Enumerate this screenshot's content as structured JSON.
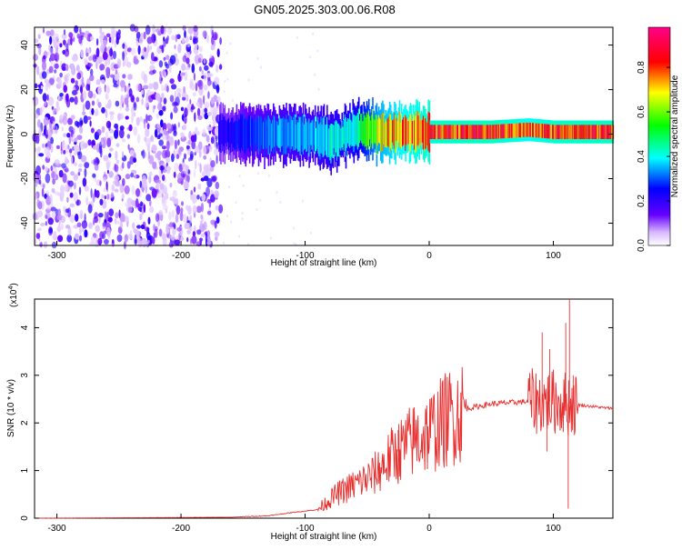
{
  "title": "GN05.2025.303.00.06.R08",
  "top_panel": {
    "xlabel": "Height of straight line (km)",
    "ylabel": "Frequency (Hz)",
    "colorbar_label": "Normalized spectral amplitude"
  },
  "bottom_panel": {
    "xlabel": "Height of straight line (km)",
    "ylabel": "SNR (10 * v/v)",
    "multiplier": "(x10",
    "multiplier_exp": "4",
    "multiplier_close": ")"
  },
  "chart_data": [
    {
      "type": "heatmap",
      "title": "GN05.2025.303.00.06.R08",
      "xlabel": "Height of straight line (km)",
      "ylabel": "Frequency (Hz)",
      "xlim": [
        -318,
        148
      ],
      "ylim": [
        -50,
        48
      ],
      "xticks": [
        -300,
        -200,
        -100,
        0,
        100
      ],
      "yticks": [
        -40,
        -20,
        0,
        20,
        40
      ],
      "colorbar": {
        "label": "Normalized spectral amplitude",
        "range": [
          0,
          0.98
        ],
        "ticks": [
          0.0,
          0.2,
          0.4,
          0.6,
          0.8
        ],
        "colormap": [
          "#ffffff",
          "#6600ff",
          "#0000ff",
          "#00ffff",
          "#00ff00",
          "#ffff00",
          "#ff0000",
          "#ff0088"
        ]
      },
      "noise_region_x": [
        -318,
        -168
      ],
      "ridge": [
        {
          "x": -170,
          "f": 0,
          "amp": 0.25
        },
        {
          "x": -150,
          "f": 0,
          "amp": 0.3
        },
        {
          "x": -120,
          "f": 0,
          "amp": 0.4
        },
        {
          "x": -100,
          "f": 0,
          "amp": 0.4
        },
        {
          "x": -80,
          "f": -3,
          "amp": 0.45
        },
        {
          "x": -60,
          "f": 2,
          "amp": 0.5
        },
        {
          "x": -40,
          "f": 1,
          "amp": 0.8
        },
        {
          "x": -20,
          "f": 1,
          "amp": 0.9
        },
        {
          "x": 0,
          "f": 1,
          "amp": 0.95
        },
        {
          "x": 50,
          "f": 1,
          "amp": 0.97
        },
        {
          "x": 80,
          "f": 2,
          "amp": 0.9
        },
        {
          "x": 100,
          "f": 1,
          "amp": 0.95
        },
        {
          "x": 148,
          "f": 1,
          "amp": 0.97
        }
      ]
    },
    {
      "type": "line",
      "xlabel": "Height of straight line (km)",
      "ylabel": "SNR (10 * v/v)",
      "xlim": [
        -318,
        148
      ],
      "ylim": [
        0,
        4.6
      ],
      "xticks": [
        -300,
        -200,
        -100,
        0,
        100
      ],
      "yticks": [
        0,
        1,
        2,
        3,
        4
      ],
      "y_multiplier": "x10^4",
      "color": "#e83030",
      "envelope": [
        {
          "x": -318,
          "y": 0.0
        },
        {
          "x": -160,
          "y": 0.02
        },
        {
          "x": -130,
          "y": 0.05
        },
        {
          "x": -110,
          "y": 0.12
        },
        {
          "x": -90,
          "y": 0.18
        },
        {
          "x": -75,
          "y": 0.5
        },
        {
          "x": -60,
          "y": 0.7
        },
        {
          "x": -45,
          "y": 0.9
        },
        {
          "x": -30,
          "y": 1.3
        },
        {
          "x": -15,
          "y": 1.6
        },
        {
          "x": 0,
          "y": 1.8
        },
        {
          "x": 15,
          "y": 2.1
        },
        {
          "x": 30,
          "y": 2.3
        },
        {
          "x": 50,
          "y": 2.4
        },
        {
          "x": 80,
          "y": 2.45
        },
        {
          "x": 100,
          "y": 2.45
        },
        {
          "x": 112,
          "y": 2.4
        },
        {
          "x": 148,
          "y": 2.3
        }
      ],
      "spikes": [
        {
          "x": -25,
          "y": 1.85
        },
        {
          "x": 91,
          "y": 3.9
        },
        {
          "x": 97,
          "y": 3.55
        },
        {
          "x": 110,
          "y": 4.1
        },
        {
          "x": 113,
          "y": 4.6
        },
        {
          "x": 116,
          "y": 3.0
        },
        {
          "x": 112,
          "y": 0.2
        },
        {
          "x": 95,
          "y": 1.4
        }
      ]
    }
  ]
}
